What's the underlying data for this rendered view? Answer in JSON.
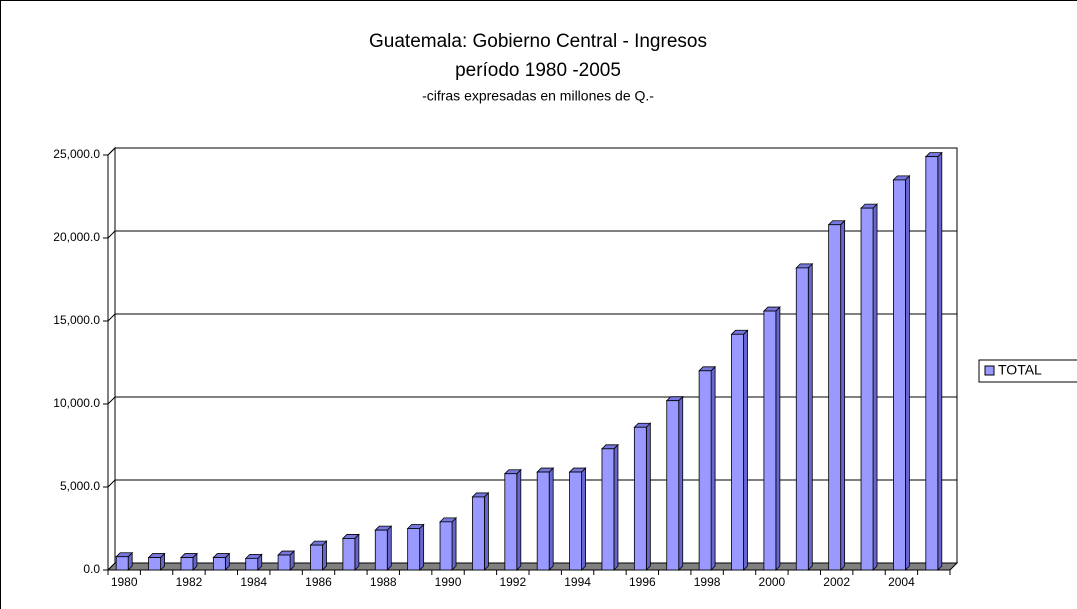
{
  "chart_data": {
    "type": "bar",
    "title": "Guatemala: Gobierno Central - Ingresos",
    "subtitle": "período 1980 -2005",
    "note": "-cifras expresadas en millones de Q.-",
    "categories": [
      "1980",
      null,
      "1982",
      null,
      "1984",
      null,
      "1986",
      null,
      "1988",
      null,
      "1990",
      null,
      "1992",
      null,
      "1994",
      null,
      "1996",
      null,
      "1998",
      null,
      "2000",
      null,
      "2002",
      null,
      "2004",
      null
    ],
    "series": [
      {
        "name": "TOTAL",
        "color": "#9999ff",
        "values": [
          800,
          750,
          750,
          750,
          700,
          900,
          1500,
          1900,
          2400,
          2500,
          2900,
          4400,
          5800,
          5900,
          5900,
          7300,
          8600,
          10200,
          12000,
          14200,
          15600,
          18200,
          20800,
          21800,
          23500,
          24900
        ]
      }
    ],
    "ylim": [
      0,
      25000
    ],
    "yticks": [
      {
        "value": 0,
        "label": "0.0"
      },
      {
        "value": 5000,
        "label": "5,000.0"
      },
      {
        "value": 10000,
        "label": "10,000.0"
      },
      {
        "value": 15000,
        "label": "15,000.0"
      },
      {
        "value": 20000,
        "label": "20,000.0"
      },
      {
        "value": 25000,
        "label": "25,000.0"
      }
    ],
    "grid": true,
    "legend": "right"
  }
}
